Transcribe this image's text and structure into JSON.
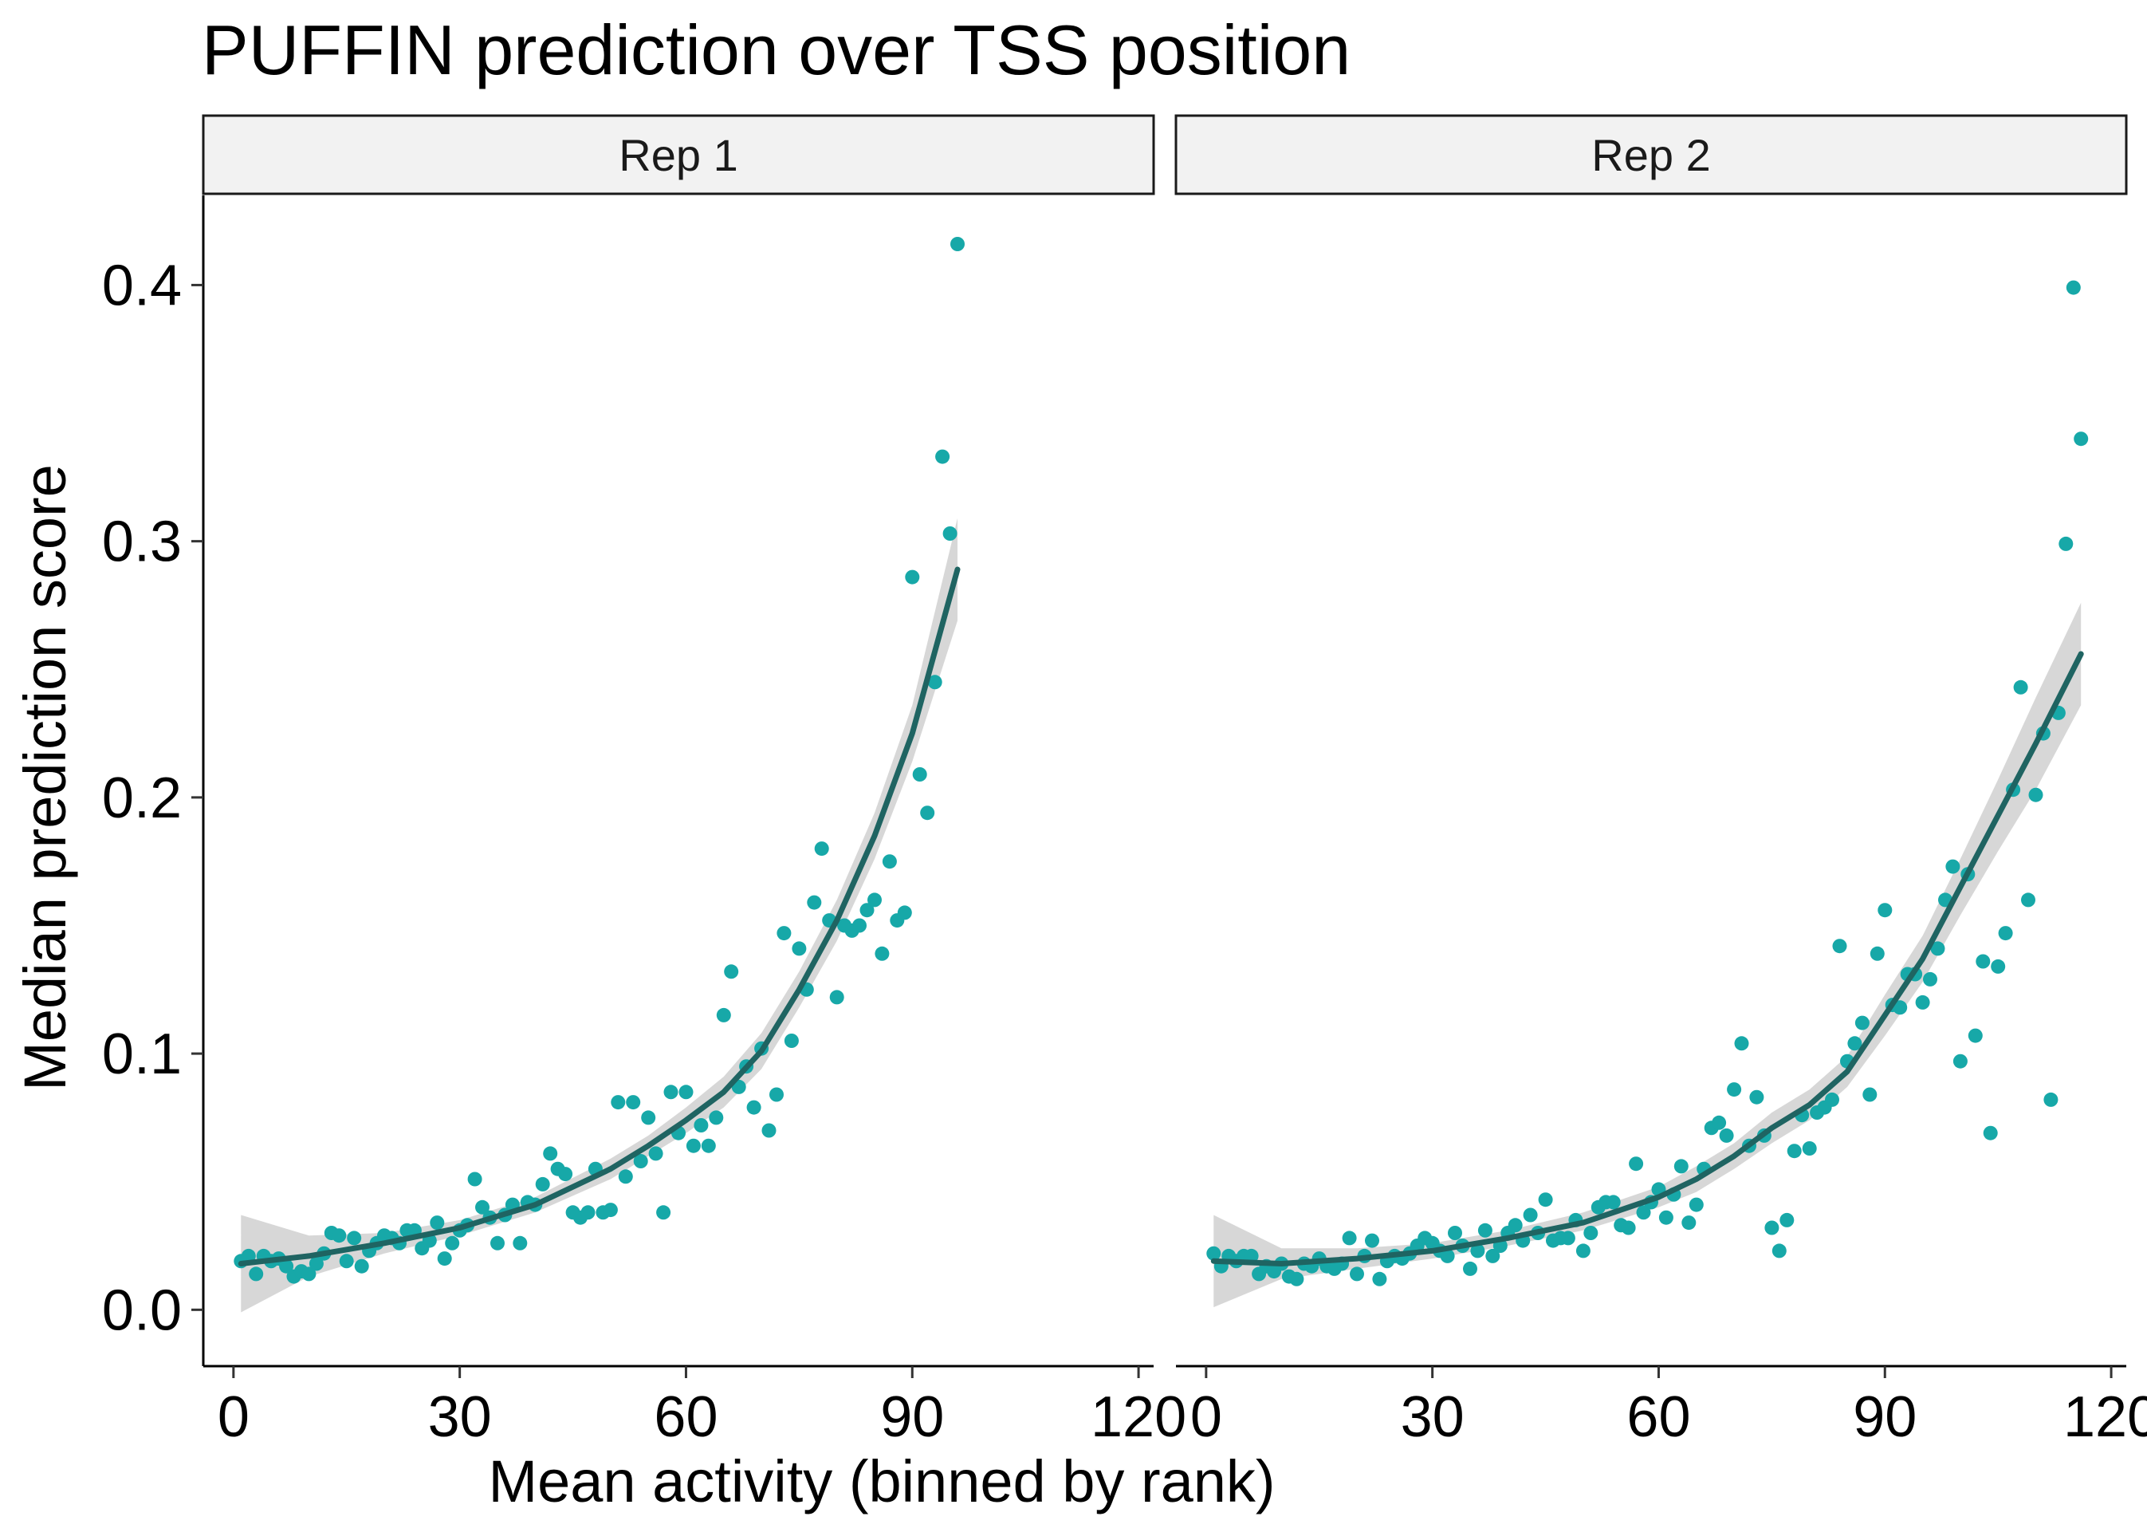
{
  "chart_data": {
    "type": "scatter",
    "title": "PUFFIN prediction over TSS position",
    "xlabel": "Mean activity (binned by rank)",
    "ylabel": "Median prediction score",
    "xlim": [
      -4,
      122
    ],
    "ylim": [
      -0.022,
      0.435
    ],
    "x_ticks": [
      0,
      30,
      60,
      90,
      120
    ],
    "x_tick_labels": [
      "0",
      "30",
      "60",
      "90",
      "120"
    ],
    "y_ticks": [
      0.0,
      0.1,
      0.2,
      0.3,
      0.4
    ],
    "y_tick_labels": [
      "0.0",
      "0.1",
      "0.2",
      "0.3",
      "0.4"
    ],
    "grid": false,
    "legend": "none",
    "point_color": "#17A8A8",
    "smooth_color": "#1F6462",
    "ribbon_color": "#BDBDBD",
    "strip_fill": "#F2F2F2",
    "panels": [
      {
        "strip": "Rep 1",
        "points": [
          [
            1,
            0.019
          ],
          [
            2,
            0.021
          ],
          [
            3,
            0.014
          ],
          [
            4,
            0.021
          ],
          [
            5,
            0.019
          ],
          [
            6,
            0.02
          ],
          [
            7,
            0.017
          ],
          [
            8,
            0.013
          ],
          [
            9,
            0.015
          ],
          [
            10,
            0.014
          ],
          [
            11,
            0.018
          ],
          [
            12,
            0.022
          ],
          [
            13,
            0.03
          ],
          [
            14,
            0.029
          ],
          [
            15,
            0.019
          ],
          [
            16,
            0.028
          ],
          [
            17,
            0.017
          ],
          [
            18,
            0.023
          ],
          [
            19,
            0.026
          ],
          [
            20,
            0.029
          ],
          [
            21,
            0.028
          ],
          [
            22,
            0.026
          ],
          [
            23,
            0.031
          ],
          [
            24,
            0.031
          ],
          [
            25,
            0.024
          ],
          [
            26,
            0.027
          ],
          [
            27,
            0.034
          ],
          [
            28,
            0.02
          ],
          [
            29,
            0.026
          ],
          [
            30,
            0.031
          ],
          [
            31,
            0.033
          ],
          [
            32,
            0.051
          ],
          [
            33,
            0.04
          ],
          [
            34,
            0.036
          ],
          [
            35,
            0.026
          ],
          [
            36,
            0.037
          ],
          [
            37,
            0.041
          ],
          [
            38,
            0.026
          ],
          [
            39,
            0.042
          ],
          [
            40,
            0.041
          ],
          [
            41,
            0.049
          ],
          [
            42,
            0.061
          ],
          [
            43,
            0.055
          ],
          [
            44,
            0.053
          ],
          [
            45,
            0.038
          ],
          [
            46,
            0.036
          ],
          [
            47,
            0.038
          ],
          [
            48,
            0.055
          ],
          [
            49,
            0.038
          ],
          [
            50,
            0.039
          ],
          [
            51,
            0.081
          ],
          [
            52,
            0.052
          ],
          [
            53,
            0.081
          ],
          [
            54,
            0.058
          ],
          [
            55,
            0.075
          ],
          [
            56,
            0.061
          ],
          [
            57,
            0.038
          ],
          [
            58,
            0.085
          ],
          [
            59,
            0.069
          ],
          [
            60,
            0.085
          ],
          [
            61,
            0.064
          ],
          [
            62,
            0.072
          ],
          [
            63,
            0.064
          ],
          [
            64,
            0.075
          ],
          [
            65,
            0.115
          ],
          [
            66,
            0.132
          ],
          [
            67,
            0.087
          ],
          [
            68,
            0.095
          ],
          [
            69,
            0.079
          ],
          [
            70,
            0.102
          ],
          [
            71,
            0.07
          ],
          [
            72,
            0.084
          ],
          [
            73,
            0.147
          ],
          [
            74,
            0.105
          ],
          [
            75,
            0.141
          ],
          [
            76,
            0.125
          ],
          [
            77,
            0.159
          ],
          [
            78,
            0.18
          ],
          [
            79,
            0.152
          ],
          [
            80,
            0.122
          ],
          [
            81,
            0.15
          ],
          [
            82,
            0.148
          ],
          [
            83,
            0.15
          ],
          [
            84,
            0.156
          ],
          [
            85,
            0.16
          ],
          [
            86,
            0.139
          ],
          [
            87,
            0.175
          ],
          [
            88,
            0.152
          ],
          [
            89,
            0.155
          ],
          [
            90,
            0.286
          ],
          [
            91,
            0.209
          ],
          [
            92,
            0.194
          ],
          [
            93,
            0.245
          ],
          [
            94,
            0.333
          ],
          [
            95,
            0.303
          ],
          [
            96,
            0.416
          ]
        ],
        "smooth": {
          "x": [
            1,
            10,
            20,
            30,
            40,
            50,
            55,
            60,
            65,
            70,
            75,
            80,
            85,
            90,
            96
          ],
          "y": [
            0.018,
            0.021,
            0.026,
            0.032,
            0.041,
            0.055,
            0.064,
            0.074,
            0.085,
            0.101,
            0.125,
            0.152,
            0.185,
            0.225,
            0.289
          ],
          "ci_low": [
            -0.001,
            0.013,
            0.022,
            0.029,
            0.038,
            0.051,
            0.06,
            0.069,
            0.079,
            0.094,
            0.118,
            0.144,
            0.176,
            0.214,
            0.269
          ],
          "ci_high": [
            0.037,
            0.029,
            0.03,
            0.035,
            0.044,
            0.059,
            0.068,
            0.079,
            0.091,
            0.108,
            0.132,
            0.16,
            0.194,
            0.236,
            0.309
          ]
        }
      },
      {
        "strip": "Rep 2",
        "points": [
          [
            1,
            0.022
          ],
          [
            2,
            0.017
          ],
          [
            3,
            0.021
          ],
          [
            4,
            0.019
          ],
          [
            5,
            0.021
          ],
          [
            6,
            0.021
          ],
          [
            7,
            0.014
          ],
          [
            8,
            0.017
          ],
          [
            9,
            0.015
          ],
          [
            10,
            0.018
          ],
          [
            11,
            0.013
          ],
          [
            12,
            0.012
          ],
          [
            13,
            0.018
          ],
          [
            14,
            0.017
          ],
          [
            15,
            0.02
          ],
          [
            16,
            0.017
          ],
          [
            17,
            0.016
          ],
          [
            18,
            0.018
          ],
          [
            19,
            0.028
          ],
          [
            20,
            0.014
          ],
          [
            21,
            0.021
          ],
          [
            22,
            0.027
          ],
          [
            23,
            0.012
          ],
          [
            24,
            0.019
          ],
          [
            25,
            0.021
          ],
          [
            26,
            0.02
          ],
          [
            27,
            0.022
          ],
          [
            28,
            0.025
          ],
          [
            29,
            0.028
          ],
          [
            30,
            0.026
          ],
          [
            31,
            0.023
          ],
          [
            32,
            0.021
          ],
          [
            33,
            0.03
          ],
          [
            34,
            0.025
          ],
          [
            35,
            0.016
          ],
          [
            36,
            0.023
          ],
          [
            37,
            0.031
          ],
          [
            38,
            0.021
          ],
          [
            39,
            0.025
          ],
          [
            40,
            0.03
          ],
          [
            41,
            0.033
          ],
          [
            42,
            0.027
          ],
          [
            43,
            0.037
          ],
          [
            44,
            0.03
          ],
          [
            45,
            0.043
          ],
          [
            46,
            0.027
          ],
          [
            47,
            0.028
          ],
          [
            48,
            0.028
          ],
          [
            49,
            0.035
          ],
          [
            50,
            0.023
          ],
          [
            51,
            0.03
          ],
          [
            52,
            0.04
          ],
          [
            53,
            0.042
          ],
          [
            54,
            0.042
          ],
          [
            55,
            0.033
          ],
          [
            56,
            0.032
          ],
          [
            57,
            0.057
          ],
          [
            58,
            0.038
          ],
          [
            59,
            0.042
          ],
          [
            60,
            0.047
          ],
          [
            61,
            0.036
          ],
          [
            62,
            0.045
          ],
          [
            63,
            0.056
          ],
          [
            64,
            0.034
          ],
          [
            65,
            0.041
          ],
          [
            66,
            0.055
          ],
          [
            67,
            0.071
          ],
          [
            68,
            0.073
          ],
          [
            69,
            0.068
          ],
          [
            70,
            0.086
          ],
          [
            71,
            0.104
          ],
          [
            72,
            0.064
          ],
          [
            73,
            0.083
          ],
          [
            74,
            0.068
          ],
          [
            75,
            0.032
          ],
          [
            76,
            0.023
          ],
          [
            77,
            0.035
          ],
          [
            78,
            0.062
          ],
          [
            79,
            0.076
          ],
          [
            80,
            0.063
          ],
          [
            81,
            0.077
          ],
          [
            82,
            0.079
          ],
          [
            83,
            0.082
          ],
          [
            84,
            0.142
          ],
          [
            85,
            0.097
          ],
          [
            86,
            0.104
          ],
          [
            87,
            0.112
          ],
          [
            88,
            0.084
          ],
          [
            89,
            0.139
          ],
          [
            90,
            0.156
          ],
          [
            91,
            0.119
          ],
          [
            92,
            0.118
          ],
          [
            93,
            0.131
          ],
          [
            94,
            0.131
          ],
          [
            95,
            0.12
          ],
          [
            96,
            0.129
          ],
          [
            97,
            0.141
          ],
          [
            98,
            0.16
          ],
          [
            99,
            0.173
          ],
          [
            100,
            0.097
          ],
          [
            101,
            0.17
          ],
          [
            102,
            0.107
          ],
          [
            103,
            0.136
          ],
          [
            104,
            0.069
          ],
          [
            105,
            0.134
          ],
          [
            106,
            0.147
          ],
          [
            107,
            0.203
          ],
          [
            108,
            0.243
          ],
          [
            109,
            0.16
          ],
          [
            110,
            0.201
          ],
          [
            111,
            0.225
          ],
          [
            112,
            0.082
          ],
          [
            113,
            0.233
          ],
          [
            114,
            0.299
          ],
          [
            115,
            0.399
          ],
          [
            116,
            0.34
          ]
        ],
        "smooth": {
          "x": [
            1,
            10,
            20,
            30,
            40,
            50,
            60,
            65,
            70,
            75,
            80,
            85,
            90,
            95,
            100,
            105,
            110,
            116
          ],
          "y": [
            0.019,
            0.018,
            0.02,
            0.023,
            0.028,
            0.034,
            0.044,
            0.051,
            0.06,
            0.071,
            0.08,
            0.093,
            0.115,
            0.137,
            0.165,
            0.193,
            0.221,
            0.256
          ],
          "ci_low": [
            0.001,
            0.012,
            0.016,
            0.02,
            0.025,
            0.031,
            0.04,
            0.046,
            0.055,
            0.065,
            0.074,
            0.087,
            0.107,
            0.128,
            0.154,
            0.179,
            0.203,
            0.236
          ],
          "ci_high": [
            0.037,
            0.024,
            0.024,
            0.026,
            0.031,
            0.038,
            0.048,
            0.056,
            0.065,
            0.077,
            0.086,
            0.099,
            0.123,
            0.146,
            0.176,
            0.207,
            0.239,
            0.276
          ]
        }
      }
    ]
  }
}
